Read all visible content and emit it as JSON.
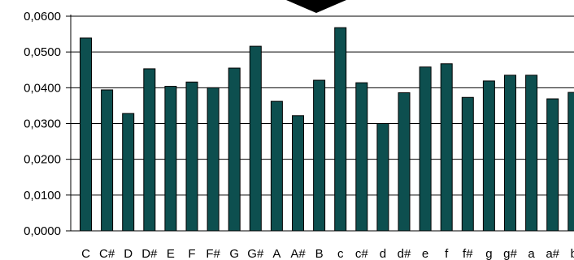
{
  "chart_data": {
    "type": "bar",
    "categories": [
      "C",
      "C#",
      "D",
      "D#",
      "E",
      "F",
      "F#",
      "G",
      "G#",
      "A",
      "A#",
      "B",
      "c",
      "c#",
      "d",
      "d#",
      "e",
      "f",
      "f#",
      "g",
      "g#",
      "a",
      "a#",
      "b"
    ],
    "values": [
      0.0539,
      0.0394,
      0.0328,
      0.0453,
      0.0404,
      0.0416,
      0.04,
      0.0455,
      0.0516,
      0.0362,
      0.0322,
      0.0421,
      0.0568,
      0.0414,
      0.03,
      0.0386,
      0.0458,
      0.0467,
      0.0373,
      0.0419,
      0.0435,
      0.0435,
      0.0369,
      0.0387
    ],
    "ylim": [
      0,
      0.06
    ],
    "yticks": [
      "0,0000",
      "0,0100",
      "0,0200",
      "0,0300",
      "0,0400",
      "0,0500",
      "0,0600"
    ],
    "grid": true,
    "colors": {
      "bar": "#0d4f4f",
      "bar_edge": "#000000",
      "axis": "#000000",
      "grid": "#000000",
      "marker": "#000000"
    },
    "marker_icon": "down-arrow-icon"
  }
}
